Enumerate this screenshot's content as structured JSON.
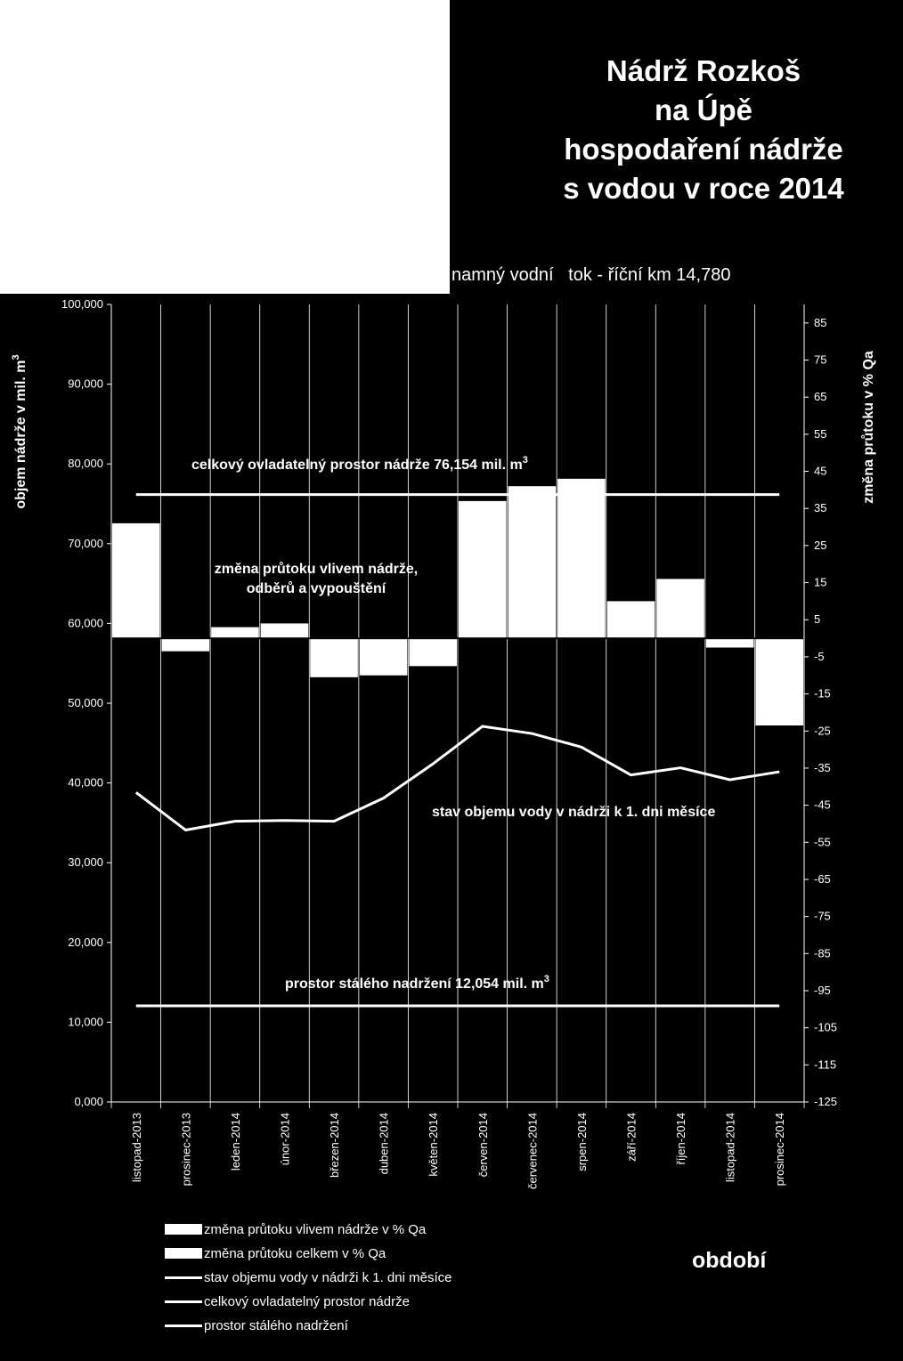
{
  "title_lines": [
    "Nádrž Rozkoš",
    "na Úpě",
    "hospodaření nádrže",
    "s vodou v roce 2014"
  ],
  "subtitle_visible": "namný vodní   tok - říční km 14,780",
  "xaxis_title": "období",
  "colors": {
    "background": "#000000",
    "foreground": "#ffffff"
  },
  "chart_data": {
    "type": "bar",
    "categories": [
      "listopad-2013",
      "prosinec-2013",
      "leden-2014",
      "únor-2014",
      "březen-2014",
      "duben-2014",
      "květen-2014",
      "červen-2014",
      "červenec-2014",
      "srpen-2014",
      "září-2014",
      "říjen-2014",
      "listopad-2014",
      "prosinec-2014"
    ],
    "xlabel": "období",
    "ylabel": "objem nádrže v mil. m3",
    "ylabel_main": "objem nádrže v mil. m",
    "ylabel_sup": "3",
    "ylabel_right": "změna průtoku v % Qa",
    "ylim": [
      0,
      100
    ],
    "ylim_right": [
      -125,
      90
    ],
    "yticks_left": [
      "0,000",
      "10,000",
      "20,000",
      "30,000",
      "40,000",
      "50,000",
      "60,000",
      "70,000",
      "80,000",
      "90,000",
      "100,000"
    ],
    "yticks_right": [
      "-125",
      "-115",
      "-105",
      "-95",
      "-85",
      "-75",
      "-65",
      "-55",
      "-45",
      "-35",
      "-25",
      "-15",
      "-5",
      "5",
      "15",
      "25",
      "35",
      "45",
      "55",
      "65",
      "75",
      "85"
    ],
    "series": [
      {
        "name": "změna průtoku vlivem nádrže v % Qa",
        "type": "bar",
        "axis": "right",
        "values": [
          31,
          -3.5,
          3,
          4,
          -10.5,
          -10,
          -7.5,
          37,
          41,
          43,
          10,
          16,
          -2.5,
          -23.5
        ]
      },
      {
        "name": "stav objemu vody v nádrži k 1. dni měsíce",
        "type": "line",
        "axis": "left",
        "values": [
          38.8,
          34.1,
          35.2,
          35.3,
          35.2,
          38.1,
          42.4,
          47.1,
          46.2,
          44.5,
          41.0,
          41.9,
          40.4,
          41.4
        ]
      },
      {
        "name": "celkový ovladatelný prostor nádrže",
        "type": "line",
        "axis": "left",
        "value": 76.154
      },
      {
        "name": "prostor stálého nadržení",
        "type": "line",
        "axis": "left",
        "value": 12.054
      }
    ],
    "annotations": {
      "celkovy_main": "celkový ovladatelný prostor nádrže 76,154 mil. m",
      "celkovy_sup": "3",
      "zmena_line1": "změna průtoku vlivem nádrže,",
      "zmena_line2": "odběrů a vypouštění",
      "stav": "stav objemu vody v  nádrži k 1. dni měsíce",
      "staly_main": "prostor stálého nadržení 12,054 mil. m",
      "staly_sup": "3"
    },
    "legend": {
      "position": "bottom-left",
      "items": [
        {
          "label": "změna průtoku vlivem nádrže v % Qa",
          "kind": "bar"
        },
        {
          "label": "změna průtoku celkem v % Qa",
          "kind": "bar"
        },
        {
          "label": "stav objemu vody v nádrži k 1. dni měsíce",
          "kind": "line"
        },
        {
          "label": "celkový ovladatelný prostor nádrže",
          "kind": "line"
        },
        {
          "label": "prostor stálého nadržení",
          "kind": "line"
        }
      ]
    }
  }
}
